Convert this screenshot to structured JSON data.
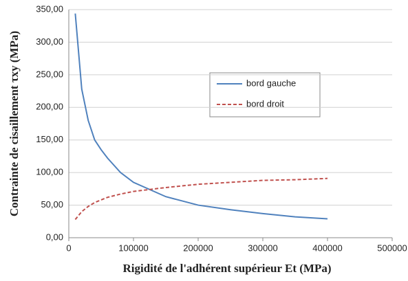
{
  "chart_data": {
    "type": "line",
    "xlabel": "Rigidité de l'adhérent supérieur Et (MPa)",
    "ylabel": "Contrainte de cisaillement τxy (MPa)",
    "x": [
      10000,
      20000,
      30000,
      40000,
      50000,
      60000,
      80000,
      100000,
      150000,
      200000,
      250000,
      300000,
      350000,
      400000
    ],
    "series": [
      {
        "name": "bord gauche",
        "color": "#4f81bd",
        "dash": false,
        "values": [
          344,
          228,
          180,
          150,
          135,
          122,
          100,
          85,
          63,
          50,
          43,
          37,
          32,
          29
        ]
      },
      {
        "name": "bord droit",
        "color": "#c0504d",
        "dash": true,
        "values": [
          28,
          40,
          48,
          54,
          58,
          62,
          67,
          71,
          77,
          82,
          85,
          88,
          89,
          91
        ]
      }
    ],
    "xlim": [
      0,
      500000
    ],
    "xticks": [
      0,
      100000,
      200000,
      300000,
      400000,
      500000
    ],
    "ylim": [
      0,
      350
    ],
    "yticks": [
      {
        "value": 0,
        "label": "0,00"
      },
      {
        "value": 50,
        "label": "50,00"
      },
      {
        "value": 100,
        "label": "100,00"
      },
      {
        "value": 150,
        "label": "150,00"
      },
      {
        "value": 200,
        "label": "200,00"
      },
      {
        "value": 250,
        "label": "250,00"
      },
      {
        "value": 300,
        "label": "300,00"
      },
      {
        "value": 350,
        "label": "350,00"
      }
    ],
    "grid": true
  }
}
